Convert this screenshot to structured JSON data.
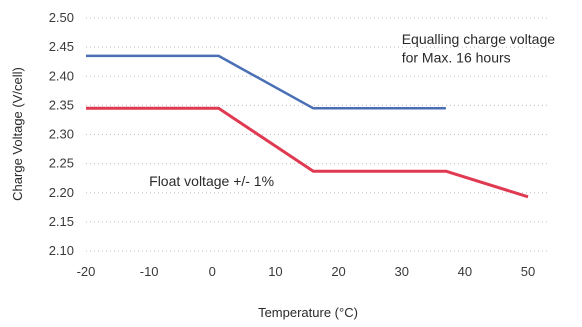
{
  "chart_data": {
    "type": "line",
    "xlabel": "Temperature (°C)",
    "ylabel": "Charge Voltage (V/cell)",
    "xlim": [
      -20,
      50
    ],
    "ylim": [
      2.1,
      2.5
    ],
    "xticks": [
      "-20",
      "-10",
      "0",
      "10",
      "20",
      "30",
      "40",
      "50"
    ],
    "yticks": [
      "2.10",
      "2.15",
      "2.20",
      "2.25",
      "2.30",
      "2.35",
      "2.40",
      "2.45",
      "2.50"
    ],
    "grid": true,
    "series": [
      {
        "name": "",
        "color": "#4a6fb5",
        "x": [
          -20,
          1,
          16,
          37
        ],
        "y": [
          2.435,
          2.435,
          2.345,
          2.345
        ]
      },
      {
        "name": "",
        "color": "#e03a52",
        "x": [
          -20,
          1,
          16,
          37,
          50
        ],
        "y": [
          2.345,
          2.345,
          2.237,
          2.237,
          2.193
        ]
      }
    ],
    "annotations": [
      {
        "id": "equalize-line1",
        "text": "Equalling charge voltage",
        "x": 30,
        "y": 2.455
      },
      {
        "id": "equalize-line2",
        "text": "for Max. 16 hours",
        "x": 30,
        "y": 2.424
      },
      {
        "id": "float",
        "text": "Float voltage +/- 1%",
        "x": -10,
        "y": 2.212
      }
    ]
  }
}
